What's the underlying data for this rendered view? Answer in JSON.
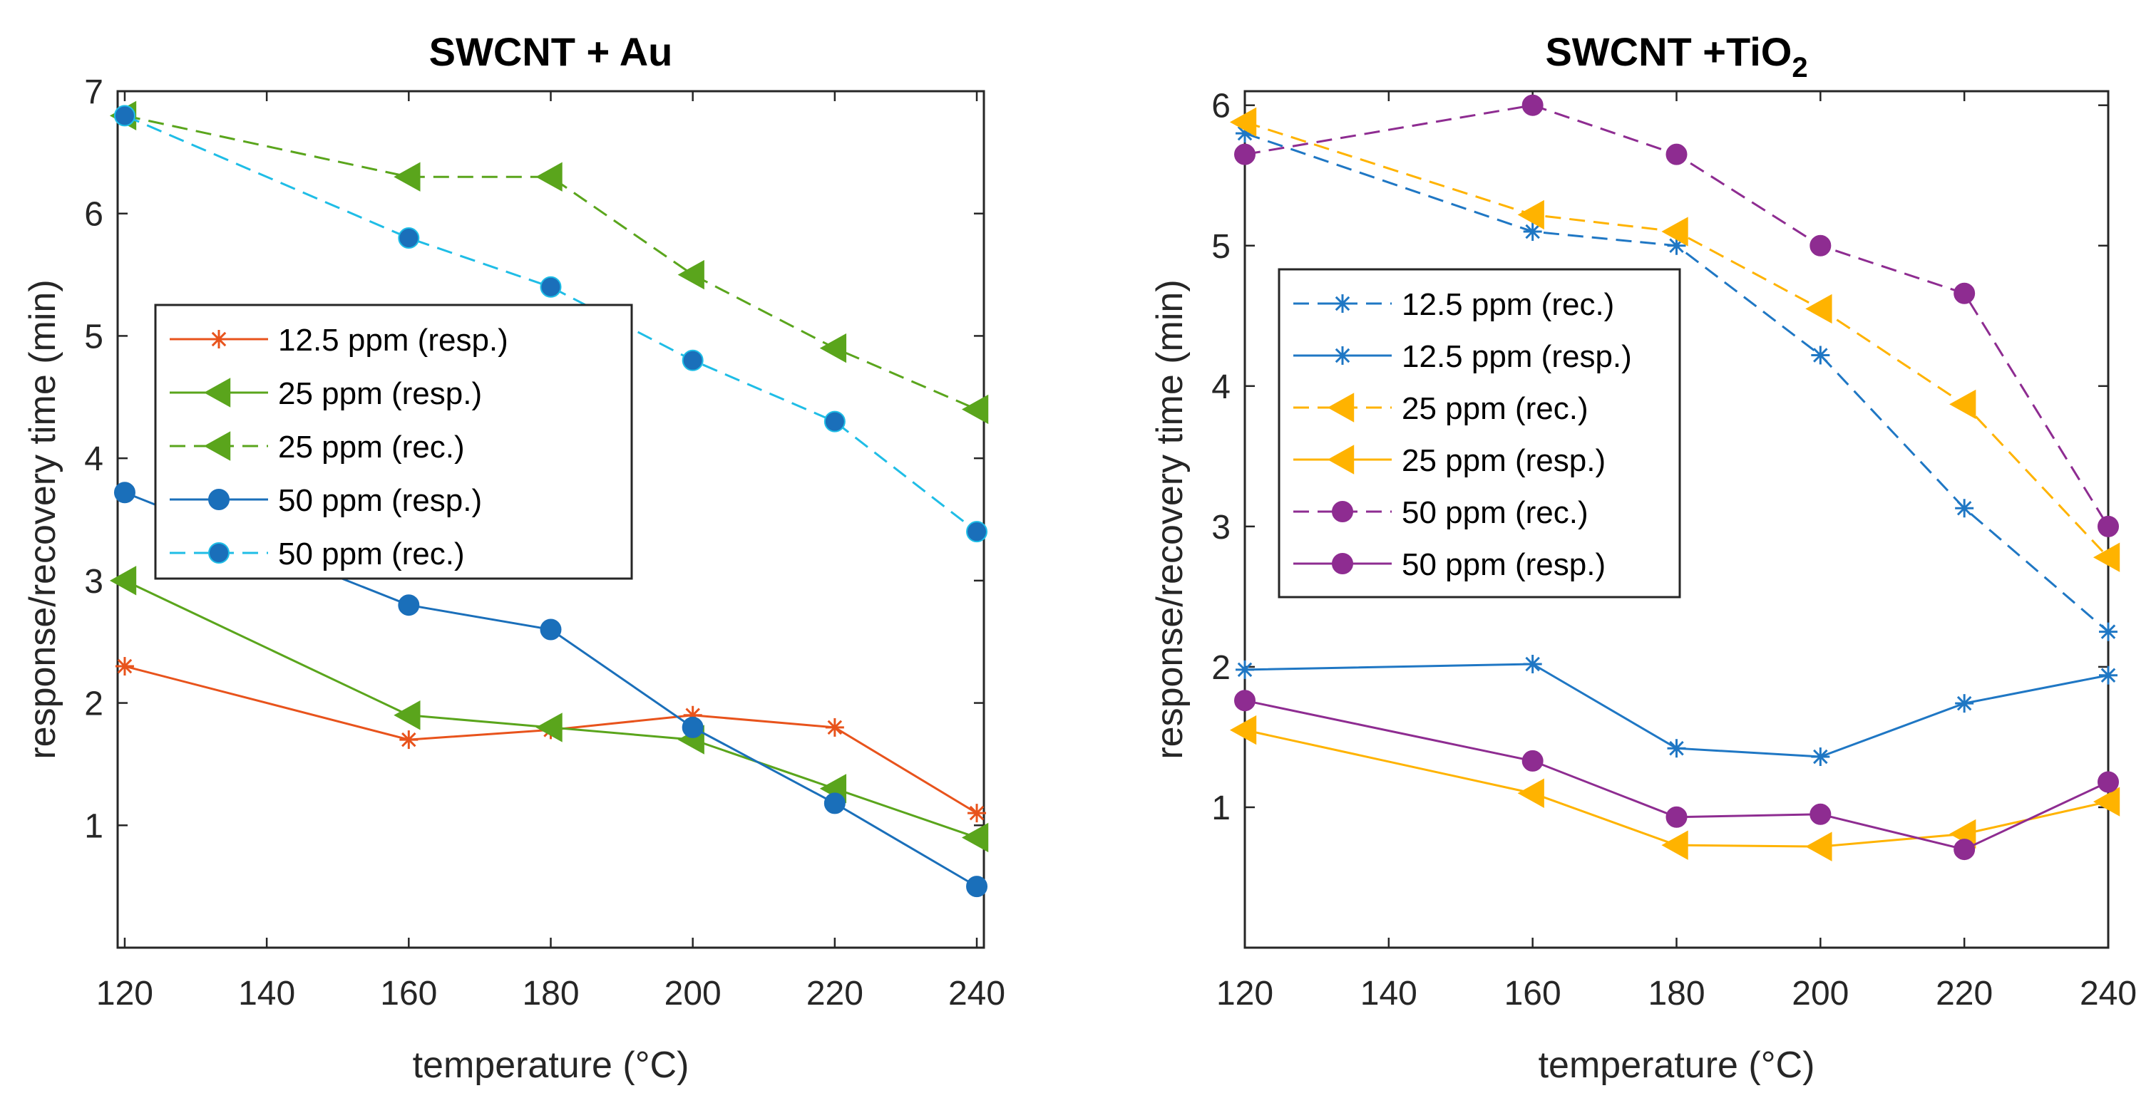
{
  "chart_data": [
    {
      "type": "line",
      "title": "SWCNT + Au",
      "title_sub": "",
      "xlabel": "temperature (°C)",
      "ylabel": "response/recovery time (min)",
      "xlim": [
        119,
        241
      ],
      "ylim": [
        0,
        7
      ],
      "xticks": [
        120,
        140,
        160,
        180,
        200,
        220,
        240
      ],
      "yticks": [
        1,
        2,
        3,
        4,
        5,
        6,
        7
      ],
      "legend_position": "center-left",
      "series": [
        {
          "name": "12.5 ppm (resp.)",
          "color": "#e8531c",
          "marker": "asterisk",
          "style": "solid",
          "x": [
            120,
            160,
            180,
            200,
            220,
            240
          ],
          "y": [
            2.3,
            1.7,
            1.78,
            1.9,
            1.8,
            1.1
          ]
        },
        {
          "name": "25 ppm (resp.)",
          "color": "#5aa51c",
          "marker": "triangle-left",
          "style": "solid",
          "x": [
            120,
            160,
            180,
            200,
            220,
            240
          ],
          "y": [
            3.0,
            1.9,
            1.8,
            1.7,
            1.3,
            0.9
          ]
        },
        {
          "name": "25 ppm (rec.)",
          "color": "#5aa51c",
          "marker": "triangle-left",
          "style": "dashed",
          "x": [
            120,
            160,
            180,
            200,
            220,
            240
          ],
          "y": [
            6.8,
            6.3,
            6.3,
            5.5,
            4.9,
            4.4
          ]
        },
        {
          "name": "50 ppm (resp.)",
          "color": "#1a6fba",
          "marker": "circle",
          "style": "solid",
          "x": [
            120,
            160,
            180,
            200,
            220,
            240
          ],
          "y": [
            3.72,
            2.8,
            2.6,
            1.8,
            1.18,
            0.5
          ]
        },
        {
          "name": "50 ppm (rec.)",
          "color": "#1fbde6",
          "marker": "circle",
          "markerFill": "#1a6fba",
          "style": "dashed",
          "x": [
            120,
            160,
            180,
            200,
            220,
            240
          ],
          "y": [
            6.8,
            5.8,
            5.4,
            4.8,
            4.3,
            3.4
          ]
        }
      ]
    },
    {
      "type": "line",
      "title": "SWCNT +TiO",
      "title_sub": "2",
      "xlabel": "temperature (°C)",
      "ylabel": "response/recovery time (min)",
      "xlim": [
        120,
        240
      ],
      "ylim": [
        0,
        6.1
      ],
      "xticks": [
        120,
        140,
        160,
        180,
        200,
        220,
        240
      ],
      "yticks": [
        1,
        2,
        3,
        4,
        5,
        6
      ],
      "legend_position": "center-left",
      "series": [
        {
          "name": "12.5 ppm (rec.)",
          "color": "#1f77c4",
          "marker": "asterisk",
          "style": "dashed",
          "x": [
            120,
            160,
            180,
            200,
            220,
            240
          ],
          "y": [
            5.8,
            5.1,
            5.0,
            4.22,
            3.13,
            2.25
          ]
        },
        {
          "name": "12.5 ppm (resp.)",
          "color": "#1f77c4",
          "marker": "asterisk",
          "style": "solid",
          "x": [
            120,
            160,
            180,
            200,
            220,
            240
          ],
          "y": [
            1.98,
            2.02,
            1.42,
            1.36,
            1.74,
            1.94
          ]
        },
        {
          "name": "25 ppm (rec.)",
          "color": "#ffb300",
          "marker": "triangle-left",
          "style": "dashed",
          "x": [
            120,
            160,
            180,
            200,
            220,
            240
          ],
          "y": [
            5.88,
            5.22,
            5.1,
            4.55,
            3.87,
            2.78
          ]
        },
        {
          "name": "25 ppm (resp.)",
          "color": "#ffb300",
          "marker": "triangle-left",
          "style": "solid",
          "x": [
            120,
            160,
            180,
            200,
            220,
            240
          ],
          "y": [
            1.55,
            1.1,
            0.73,
            0.72,
            0.81,
            1.04
          ]
        },
        {
          "name": "50 ppm (rec.)",
          "color": "#8e2c91",
          "marker": "circle",
          "style": "dashed",
          "x": [
            120,
            160,
            180,
            200,
            220,
            240
          ],
          "y": [
            5.65,
            6.0,
            5.65,
            5.0,
            4.66,
            3.0
          ]
        },
        {
          "name": "50 ppm (resp.)",
          "color": "#8e2c91",
          "marker": "circle",
          "style": "solid",
          "x": [
            120,
            160,
            180,
            200,
            220,
            240
          ],
          "y": [
            1.76,
            1.33,
            0.93,
            0.95,
            0.7,
            1.18
          ]
        }
      ]
    }
  ]
}
